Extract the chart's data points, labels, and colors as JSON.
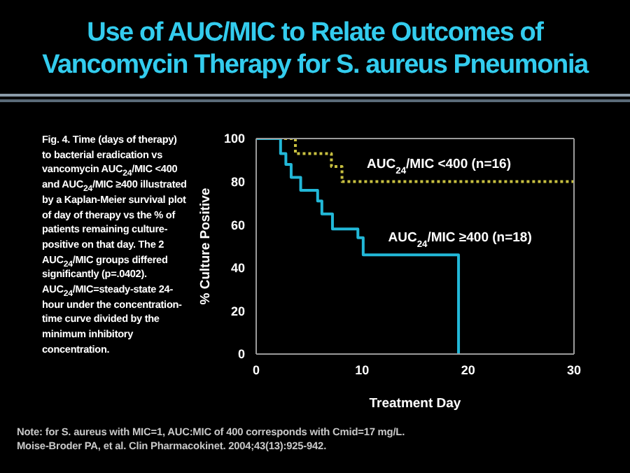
{
  "chart_data": {
    "type": "step",
    "title": "Use of AUC/MIC to Relate Outcomes of Vancomycin Therapy for S. aureus Pneumonia",
    "xlabel": "Treatment Day",
    "ylabel": "% Culture Positive",
    "xlim": [
      0,
      30
    ],
    "xticks": [
      0,
      10,
      20,
      30
    ],
    "ylim": [
      0,
      100
    ],
    "yticks": [
      0,
      20,
      40,
      60,
      80,
      100
    ],
    "grid": false,
    "legend": false,
    "marker": "none",
    "series": [
      {
        "name": "AUC$_{24}$/MIC <400 (n=16)",
        "color": "#c8c040",
        "line_style": "dotted",
        "x": [
          0,
          3.7,
          7.1,
          8.1,
          30
        ],
        "values": [
          100,
          93,
          87,
          80,
          80
        ]
      },
      {
        "name": "AUC$_{24}$/MIC ≥400 (n=18)",
        "color": "#22b8d8",
        "line_style": "solid",
        "x": [
          0,
          2.3,
          2.8,
          3.3,
          4.2,
          5.8,
          6.2,
          7.2,
          9.6,
          10.1,
          19.1
        ],
        "values": [
          100,
          93,
          88,
          82,
          76,
          71,
          65,
          58,
          54,
          46,
          0
        ]
      }
    ],
    "annotations": [
      "Fig. 4. Time (days of therapy) to bacterial eradication vs vancomycin AUC$_{24}$/MIC <400 and AUC$_{24}$/MIC ≥400 illustrated by a Kaplan-Meier survival plot of day of therapy vs the % of patients remaining culture-positive on that day. The 2 AUC$_{24}$/MIC groups differed significantly (p=.0402). AUC$_{24}$/MIC=steady-state 24-hour under the concentration-time curve divided by the minimum inhibitory concentration.",
      "Note: for S. aureus with MIC=1, AUC:MIC of 400 corresponds with Cmid=17 mg/L.",
      "Moise-Broder PA, et al. Clin Pharmacokinet. 2004;43(13):925-942."
    ]
  }
}
